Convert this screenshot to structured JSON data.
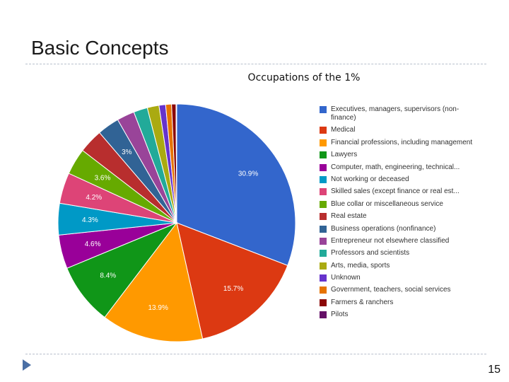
{
  "slide": {
    "title": "Basic Concepts",
    "page_number": "15"
  },
  "chart_data": {
    "type": "pie",
    "title": "Occupations of the 1%",
    "legend_position": "right",
    "slices": [
      {
        "name": "Executives, managers, supervisors (non-finance)",
        "value": 30.9,
        "label": "30.9%",
        "color": "#3366cc"
      },
      {
        "name": "Medical",
        "value": 15.7,
        "label": "15.7%",
        "color": "#dc3912"
      },
      {
        "name": "Financial professions, including management",
        "value": 13.9,
        "label": "13.9%",
        "color": "#ff9900"
      },
      {
        "name": "Lawyers",
        "value": 8.4,
        "label": "8.4%",
        "color": "#109618"
      },
      {
        "name": "Computer, math, engineering, technical...",
        "value": 4.6,
        "label": "4.6%",
        "color": "#990099"
      },
      {
        "name": "Not working or deceased",
        "value": 4.3,
        "label": "4.3%",
        "color": "#0099c6"
      },
      {
        "name": "Skilled sales (except finance or real est...",
        "value": 4.2,
        "label": "4.2%",
        "color": "#dd4477"
      },
      {
        "name": "Blue collar or miscellaneous service",
        "value": 3.6,
        "label": "3.6%",
        "color": "#66aa00"
      },
      {
        "name": "Real estate",
        "value": 3.3,
        "label": "",
        "color": "#b82e2e"
      },
      {
        "name": "Business operations (nonfinance)",
        "value": 3.0,
        "label": "3%",
        "color": "#316395"
      },
      {
        "name": "Entrepreneur not elsewhere classified",
        "value": 2.4,
        "label": "",
        "color": "#994499"
      },
      {
        "name": "Professors and scientists",
        "value": 1.9,
        "label": "",
        "color": "#22aa99"
      },
      {
        "name": "Arts, media, sports",
        "value": 1.6,
        "label": "",
        "color": "#aaaa11"
      },
      {
        "name": "Unknown",
        "value": 0.9,
        "label": "",
        "color": "#6633cc"
      },
      {
        "name": "Government, teachers, social services",
        "value": 0.8,
        "label": "",
        "color": "#e67300"
      },
      {
        "name": "Farmers & ranchers",
        "value": 0.6,
        "label": "",
        "color": "#8b0707"
      },
      {
        "name": "Pilots",
        "value": 0.1,
        "label": "",
        "color": "#651067"
      }
    ]
  }
}
